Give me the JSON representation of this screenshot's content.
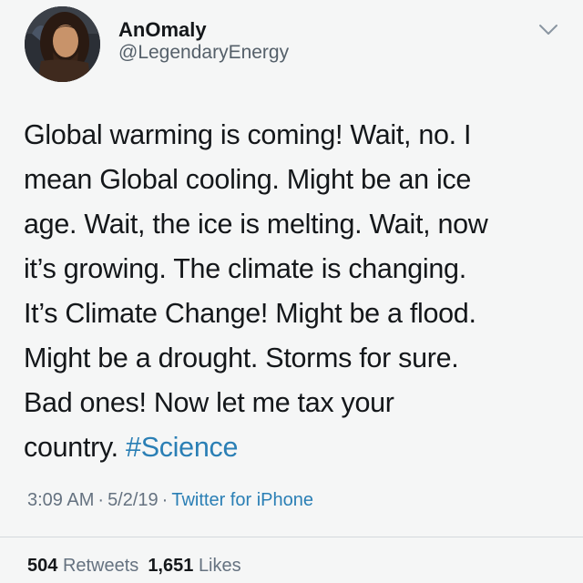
{
  "author": {
    "display_name": "AnOmaly",
    "handle": "@LegendaryEnergy",
    "avatar_icon": "profile-photo"
  },
  "menu": {
    "icon": "chevron-down-icon"
  },
  "tweet": {
    "lines": [
      "Global warming is coming! Wait, no. I",
      "mean Global cooling. Might be an ice",
      "age. Wait, the ice is melting. Wait, now",
      "it’s growing. The climate is changing.",
      "It’s Climate Change! Might be a flood.",
      "Might be a drought. Storms for sure.",
      "Bad ones! Now let me tax your"
    ],
    "last_line_text": "country.",
    "hashtag": "#Science"
  },
  "meta": {
    "time": "3:09 AM",
    "date": "5/2/19",
    "separator": "·",
    "source": "Twitter for iPhone"
  },
  "stats": {
    "retweets_count": "504",
    "retweets_label": "Retweets",
    "likes_count": "1,651",
    "likes_label": "Likes"
  },
  "colors": {
    "link": "#2a7fb5",
    "text": "#14171a",
    "muted": "#657280",
    "background": "#f5f6f6"
  }
}
